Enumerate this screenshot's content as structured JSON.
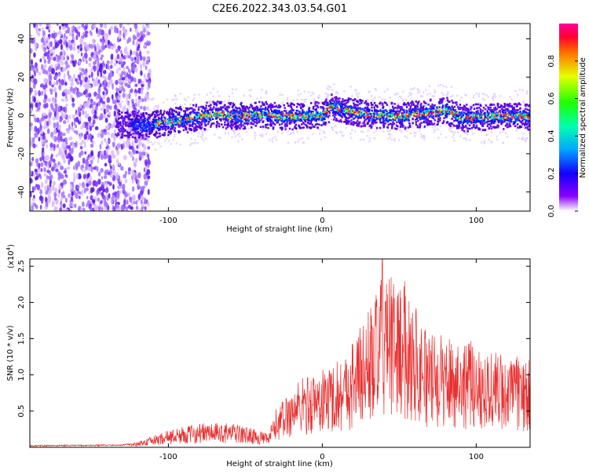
{
  "figure_title": "C2E6.2022.343.03.54.G01",
  "chart_data": [
    {
      "type": "heatmap",
      "xlabel": "Height of straight line (km)",
      "ylabel": "Frequency (Hz)",
      "xlim": [
        -190,
        135
      ],
      "ylim": [
        -50,
        48
      ],
      "x_ticks": [
        -100,
        0,
        100
      ],
      "x_tick_labels": [
        "-100",
        "0",
        "100"
      ],
      "y_ticks": [
        -40,
        -20,
        0,
        20,
        40
      ],
      "y_tick_labels": [
        "-40",
        "-20",
        "0",
        "20",
        "40"
      ],
      "colormap": "rainbow",
      "colorbar": {
        "label": "Normalized spectral amplitude",
        "range": [
          0,
          1
        ],
        "ticks": [
          0.0,
          0.2,
          0.4,
          0.6,
          0.8
        ],
        "tick_labels": [
          "0.0",
          "0.2",
          "0.4",
          "0.6",
          "0.8"
        ]
      },
      "ridge_frequency": [
        {
          "x": -130,
          "y": -4
        },
        {
          "x": -115,
          "y": -5
        },
        {
          "x": -100,
          "y": -3
        },
        {
          "x": -85,
          "y": -1
        },
        {
          "x": -70,
          "y": 1
        },
        {
          "x": -55,
          "y": 0
        },
        {
          "x": -40,
          "y": 1
        },
        {
          "x": -25,
          "y": 0
        },
        {
          "x": -10,
          "y": 0
        },
        {
          "x": 0,
          "y": 1
        },
        {
          "x": 5,
          "y": 5
        },
        {
          "x": 15,
          "y": 3
        },
        {
          "x": 30,
          "y": 1
        },
        {
          "x": 50,
          "y": 0
        },
        {
          "x": 70,
          "y": 2
        },
        {
          "x": 80,
          "y": 3
        },
        {
          "x": 90,
          "y": -1
        },
        {
          "x": 110,
          "y": 0
        },
        {
          "x": 135,
          "y": 0
        }
      ],
      "noise_region_x": [
        -190,
        -120
      ]
    },
    {
      "type": "line",
      "xlabel": "Height of straight line (km)",
      "ylabel": "SNR (10 * v/v)",
      "y_exponent_label": "(x10",
      "y_exponent_power": "4",
      "y_exponent_close": ")",
      "xlim": [
        -190,
        135
      ],
      "ylim": [
        0,
        2.6
      ],
      "x_ticks": [
        -100,
        0,
        100
      ],
      "x_tick_labels": [
        "-100",
        "0",
        "100"
      ],
      "y_ticks": [
        0.5,
        1.0,
        1.5,
        2.0,
        2.5
      ],
      "y_tick_labels": [
        "0.5",
        "1.0",
        "1.5",
        "2.0",
        "2.5"
      ],
      "line_color": "#e83030",
      "envelope": [
        {
          "x": -190,
          "y": 0.02
        },
        {
          "x": -130,
          "y": 0.03
        },
        {
          "x": -120,
          "y": 0.06
        },
        {
          "x": -100,
          "y": 0.2
        },
        {
          "x": -80,
          "y": 0.28
        },
        {
          "x": -60,
          "y": 0.28
        },
        {
          "x": -45,
          "y": 0.22
        },
        {
          "x": -35,
          "y": 0.15
        },
        {
          "x": -30,
          "y": 0.45
        },
        {
          "x": -15,
          "y": 0.8
        },
        {
          "x": 0,
          "y": 0.9
        },
        {
          "x": 15,
          "y": 1.1
        },
        {
          "x": 30,
          "y": 1.6
        },
        {
          "x": 40,
          "y": 2.0
        },
        {
          "x": 55,
          "y": 1.9
        },
        {
          "x": 70,
          "y": 1.3
        },
        {
          "x": 85,
          "y": 1.3
        },
        {
          "x": 100,
          "y": 1.2
        },
        {
          "x": 115,
          "y": 1.1
        },
        {
          "x": 135,
          "y": 1.0
        }
      ],
      "peak": {
        "x": 39,
        "y": 2.6
      }
    }
  ]
}
